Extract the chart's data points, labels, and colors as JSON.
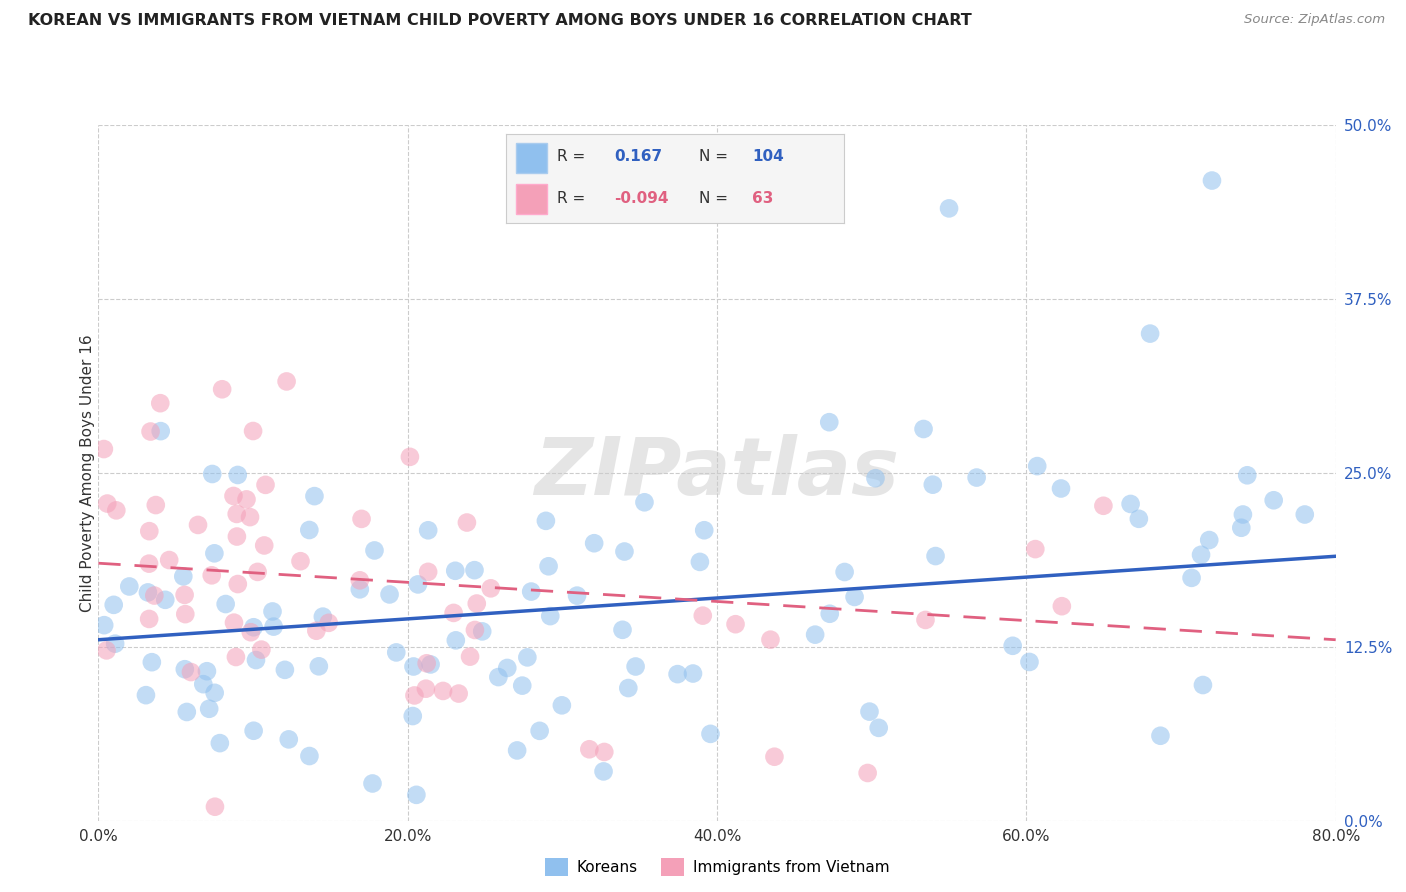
{
  "title": "KOREAN VS IMMIGRANTS FROM VIETNAM CHILD POVERTY AMONG BOYS UNDER 16 CORRELATION CHART",
  "source": "Source: ZipAtlas.com",
  "ylabel": "Child Poverty Among Boys Under 16",
  "xlim": [
    0.0,
    0.8
  ],
  "ylim": [
    0.0,
    0.5
  ],
  "legend_label1": "Koreans",
  "legend_label2": "Immigrants from Vietnam",
  "r1": 0.167,
  "n1": 104,
  "r2": -0.094,
  "n2": 63,
  "color_blue": "#90C0EE",
  "color_pink": "#F4A0B8",
  "color_trend_blue": "#3060C0",
  "color_trend_pink": "#E06080",
  "watermark": "ZIPatlas",
  "background_color": "#FFFFFF",
  "korean_trend_start_y": 0.13,
  "korean_trend_end_y": 0.19,
  "vietnam_trend_start_y": 0.185,
  "vietnam_trend_end_y": 0.13
}
